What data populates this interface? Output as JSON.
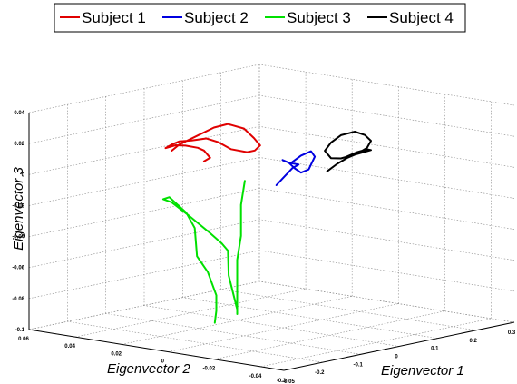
{
  "chart_data": {
    "type": "line3d",
    "title": "",
    "xlabel": "Eigenvector 1",
    "ylabel": "Eigenvector 2",
    "zlabel": "Eigenvector 3",
    "xlim": [
      -0.3,
      0.3
    ],
    "ylim": [
      -0.05,
      0.06
    ],
    "zlim": [
      -0.1,
      0.04
    ],
    "grid": true,
    "legend_position": "top",
    "x_ticks": [
      "-0.3",
      "-0.2",
      "-0.1",
      "0",
      "0.1",
      "0.2",
      "0.3"
    ],
    "y_ticks": [
      "-0.04",
      "-0.02",
      "0",
      "0.02",
      "0.04",
      "0.06"
    ],
    "y_tick_cut_label": "-0.05",
    "z_ticks": [
      "-0.1",
      "-0.08",
      "-0.06",
      "-0.04",
      "-0.02",
      "0",
      "0.02",
      "0.04"
    ],
    "series": [
      {
        "name": "Subject 1",
        "color": "#e00000",
        "points": [
          [
            -0.2,
            0.015,
            0.021
          ],
          [
            -0.18,
            0.015,
            0.024
          ],
          [
            -0.15,
            0.012,
            0.029
          ],
          [
            -0.12,
            0.01,
            0.033
          ],
          [
            -0.09,
            0.009,
            0.034
          ],
          [
            -0.06,
            0.007,
            0.03
          ],
          [
            -0.04,
            0.006,
            0.023
          ],
          [
            -0.03,
            0.005,
            0.018
          ],
          [
            -0.05,
            0.004,
            0.016
          ],
          [
            -0.07,
            0.004,
            0.016
          ],
          [
            -0.1,
            0.006,
            0.019
          ],
          [
            -0.12,
            0.008,
            0.024
          ],
          [
            -0.14,
            0.01,
            0.027
          ],
          [
            -0.16,
            0.013,
            0.026
          ],
          [
            -0.18,
            0.015,
            0.026
          ],
          [
            -0.2,
            0.015,
            0.025
          ],
          [
            -0.21,
            0.016,
            0.023
          ],
          [
            -0.19,
            0.015,
            0.024
          ],
          [
            -0.17,
            0.014,
            0.023
          ],
          [
            -0.15,
            0.012,
            0.021
          ],
          [
            -0.14,
            0.011,
            0.019
          ],
          [
            -0.13,
            0.01,
            0.014
          ],
          [
            -0.14,
            0.011,
            0.012
          ]
        ]
      },
      {
        "name": "Subject 2",
        "color": "#0000e0",
        "points": [
          [
            -0.01,
            -0.005,
            0.008
          ],
          [
            0.01,
            -0.006,
            0.012
          ],
          [
            0.03,
            -0.007,
            0.014
          ],
          [
            0.04,
            -0.007,
            0.01
          ],
          [
            0.03,
            -0.006,
            0.002
          ],
          [
            0.01,
            -0.006,
            0.001
          ],
          [
            0.0,
            -0.005,
            0.004
          ],
          [
            -0.01,
            -0.004,
            0.008
          ],
          [
            -0.02,
            -0.003,
            0.01
          ],
          [
            -0.01,
            -0.004,
            0.008
          ],
          [
            0.01,
            -0.005,
            0.006
          ],
          [
            0.0,
            -0.004,
            0.004
          ],
          [
            -0.02,
            -0.003,
            -0.002
          ],
          [
            -0.03,
            -0.002,
            -0.006
          ]
        ]
      },
      {
        "name": "Subject 3",
        "color": "#00e000",
        "points": [
          [
            -0.1,
            0.0,
            0.0
          ],
          [
            -0.11,
            0.0,
            -0.015
          ],
          [
            -0.11,
            0.0,
            -0.035
          ],
          [
            -0.12,
            0.0,
            -0.05
          ],
          [
            -0.12,
            0.0,
            -0.065
          ],
          [
            -0.12,
            0.0,
            -0.085
          ],
          [
            -0.12,
            0.0,
            -0.082
          ],
          [
            -0.13,
            0.002,
            -0.06
          ],
          [
            -0.12,
            0.004,
            -0.045
          ],
          [
            -0.13,
            0.005,
            -0.04
          ],
          [
            -0.14,
            0.009,
            -0.033
          ],
          [
            -0.16,
            0.015,
            -0.022
          ],
          [
            -0.17,
            0.02,
            -0.015
          ],
          [
            -0.18,
            0.022,
            -0.013
          ],
          [
            -0.17,
            0.021,
            -0.012
          ],
          [
            -0.15,
            0.017,
            -0.022
          ],
          [
            -0.14,
            0.015,
            -0.032
          ],
          [
            -0.14,
            0.014,
            -0.05
          ],
          [
            -0.13,
            0.011,
            -0.06
          ],
          [
            -0.12,
            0.009,
            -0.075
          ],
          [
            -0.12,
            0.009,
            -0.085
          ],
          [
            -0.13,
            0.008,
            -0.092
          ]
        ]
      },
      {
        "name": "Subject 4",
        "color": "#000000",
        "points": [
          [
            0.06,
            -0.009,
            0.0
          ],
          [
            0.08,
            -0.01,
            0.004
          ],
          [
            0.1,
            -0.011,
            0.007
          ],
          [
            0.12,
            -0.012,
            0.009
          ],
          [
            0.14,
            -0.013,
            0.012
          ],
          [
            0.15,
            -0.013,
            0.016
          ],
          [
            0.14,
            -0.012,
            0.02
          ],
          [
            0.12,
            -0.011,
            0.023
          ],
          [
            0.09,
            -0.01,
            0.022
          ],
          [
            0.07,
            -0.009,
            0.018
          ],
          [
            0.06,
            -0.008,
            0.013
          ],
          [
            0.07,
            -0.009,
            0.008
          ],
          [
            0.09,
            -0.01,
            0.007
          ],
          [
            0.11,
            -0.011,
            0.008
          ],
          [
            0.13,
            -0.012,
            0.009
          ],
          [
            0.15,
            -0.013,
            0.01
          ],
          [
            0.14,
            -0.013,
            0.011
          ],
          [
            0.12,
            -0.012,
            0.01
          ],
          [
            0.1,
            -0.011,
            0.008
          ]
        ]
      }
    ]
  }
}
